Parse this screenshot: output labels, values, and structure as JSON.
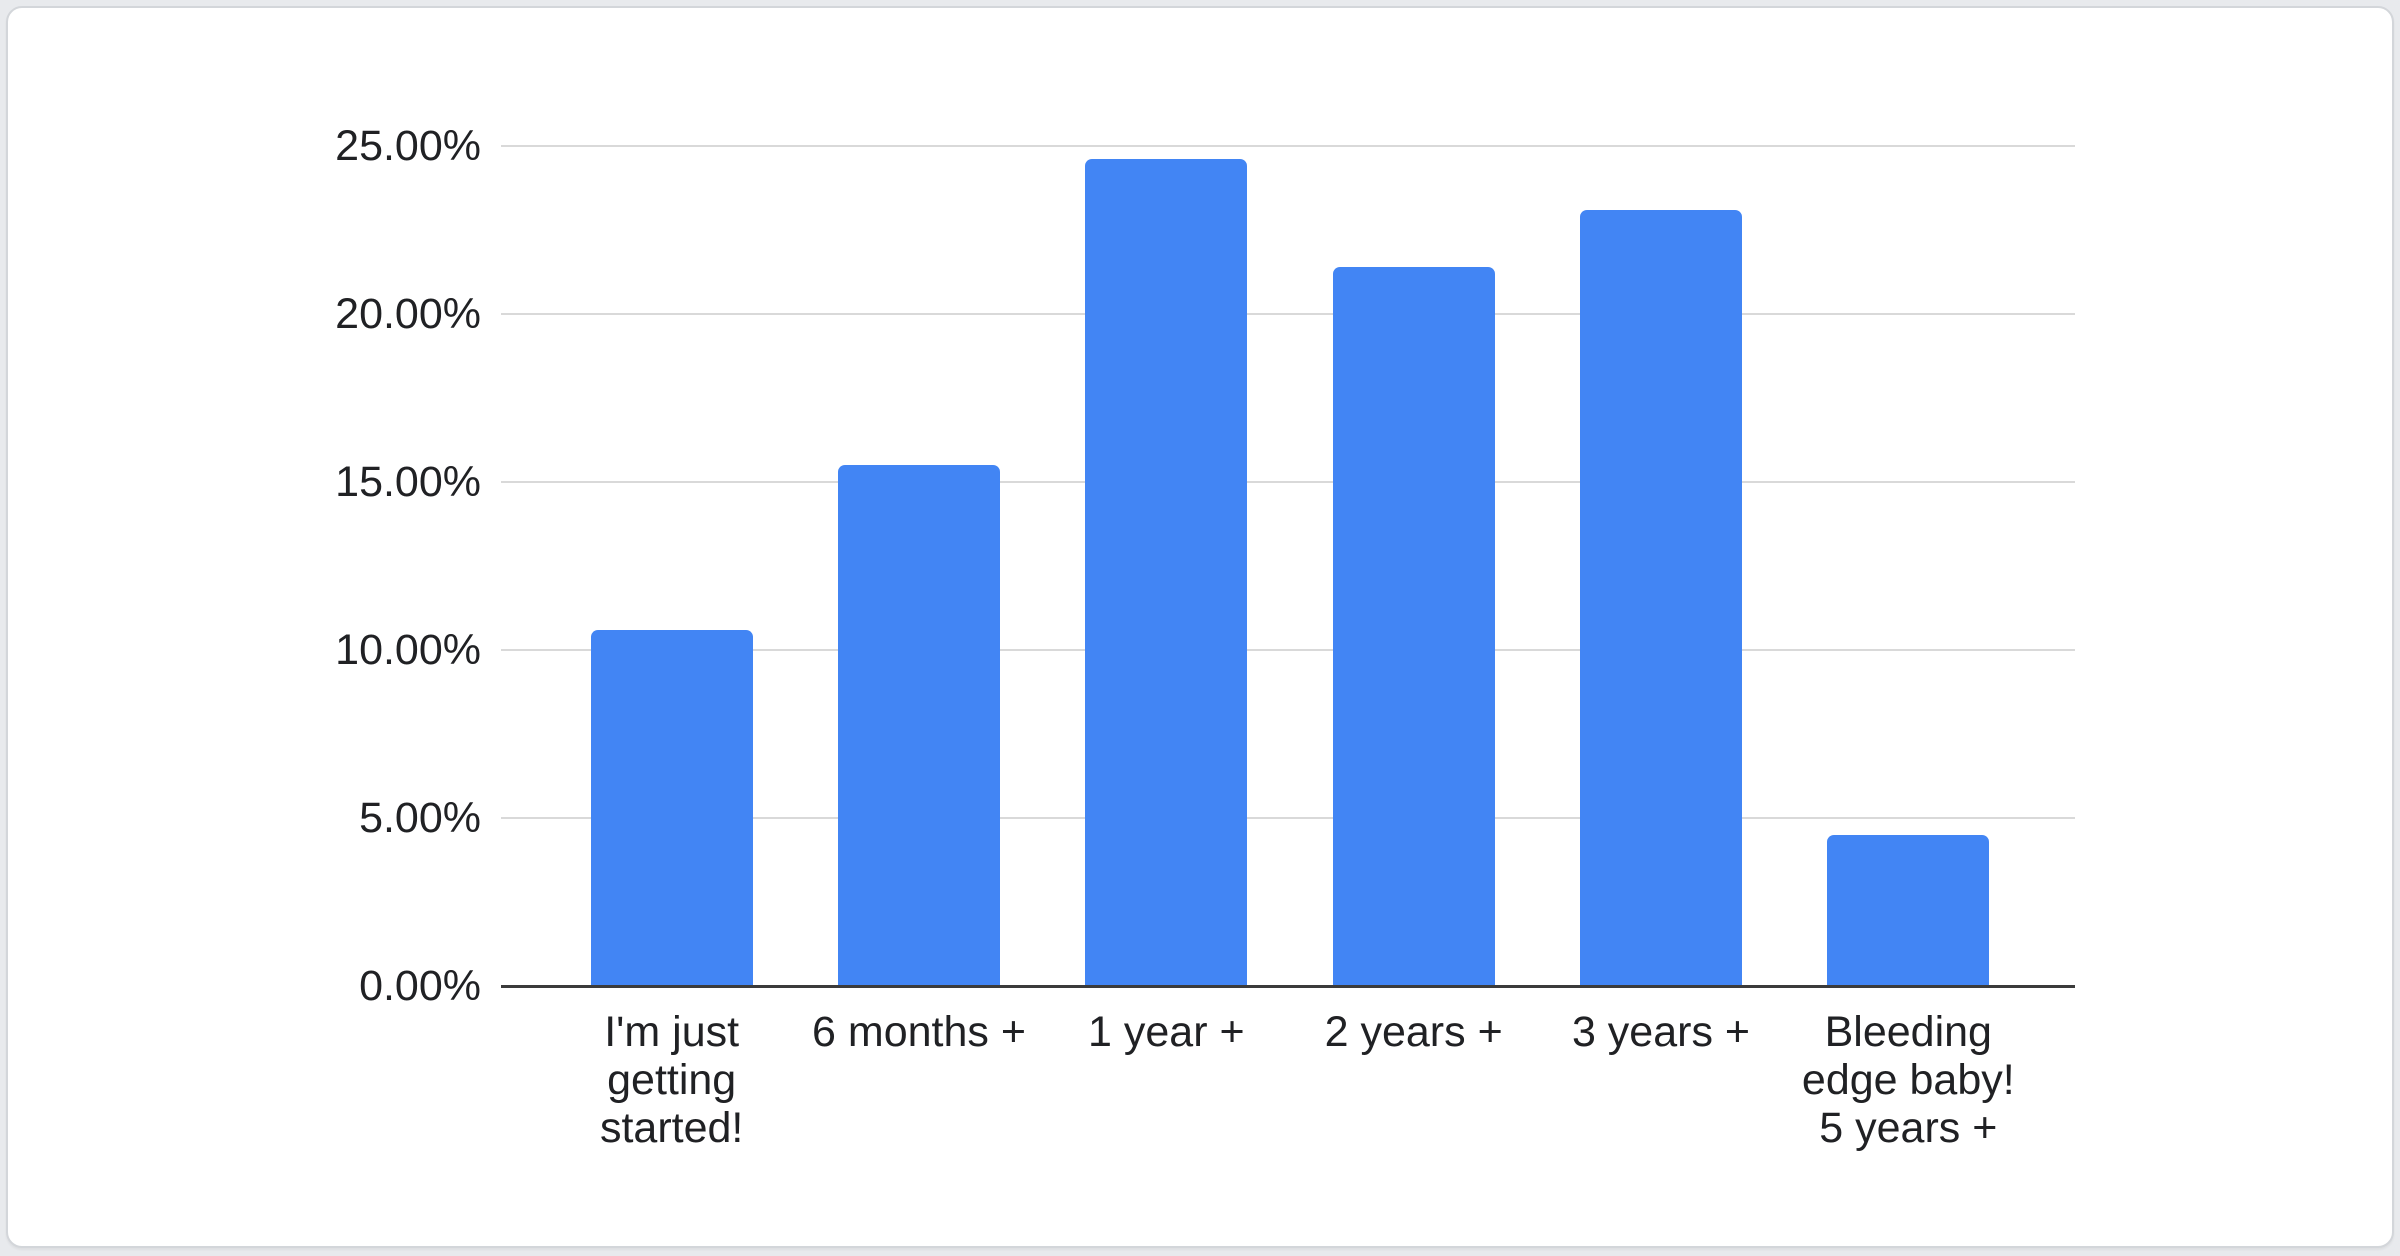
{
  "page": {
    "background_color": "#e8eaed",
    "card_background_color": "#ffffff",
    "card_border_color": "#d3d6da"
  },
  "chart_data": {
    "type": "bar",
    "title": "",
    "xlabel": "",
    "ylabel": "",
    "categories": [
      "I'm just getting started!",
      "6 months +",
      "1 year +",
      "2 years +",
      "3 years +",
      "Bleeding edge baby! 5 years +"
    ],
    "category_lines": [
      [
        "I'm just",
        "getting",
        "started!"
      ],
      [
        "6 months +"
      ],
      [
        "1 year +"
      ],
      [
        "2 years +"
      ],
      [
        "3 years +"
      ],
      [
        "Bleeding",
        "edge baby!",
        "5 years +"
      ]
    ],
    "values": [
      10.6,
      15.5,
      24.6,
      21.4,
      23.1,
      4.5
    ],
    "value_unit": "percent",
    "ylim": [
      0,
      25
    ],
    "yticks": [
      {
        "value": 0,
        "label": "0.00%"
      },
      {
        "value": 5,
        "label": "5.00%"
      },
      {
        "value": 10,
        "label": "10.00%"
      },
      {
        "value": 15,
        "label": "15.00%"
      },
      {
        "value": 20,
        "label": "20.00%"
      },
      {
        "value": 25,
        "label": "25.00%"
      }
    ],
    "grid": true,
    "legend": "none",
    "bar_color": "#4285f4",
    "grid_color": "#d9d9d9",
    "axis_color": "#3b3b3b",
    "label_color": "#202124"
  }
}
